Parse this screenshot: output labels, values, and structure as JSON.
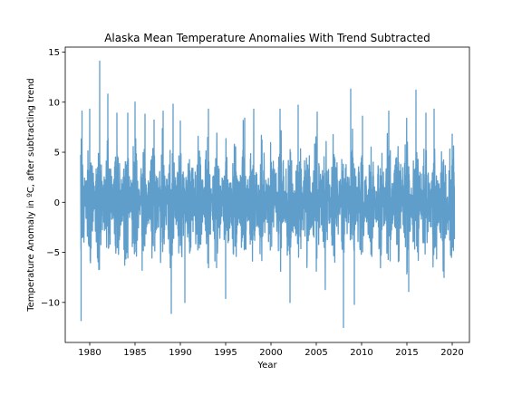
{
  "chart_data": {
    "type": "line",
    "title": "Alaska Mean Temperature Anomalies With Trend Subtracted",
    "xlabel": "Year",
    "ylabel": "Temperature Anomaly in ºC, after subtracting trend",
    "xlim": [
      1977.3,
      2021.9
    ],
    "ylim": [
      -14.0,
      15.5
    ],
    "xticks": [
      1980,
      1985,
      1990,
      1995,
      2000,
      2005,
      2010,
      2015,
      2020
    ],
    "yticks": [
      -10,
      -5,
      0,
      5,
      10,
      15
    ],
    "grid": false,
    "line_color": "#5f9ecb",
    "series": [
      {
        "sampling": "approximately daily, 1979-01-01 to 2020-03-31",
        "x_start": 1979.0,
        "x_end": 2020.25,
        "typical_range": [
          -6,
          6
        ],
        "extreme_points": [
          {
            "x": 1979.05,
            "y": -11.8
          },
          {
            "x": 1979.15,
            "y": 9.1
          },
          {
            "x": 1980.0,
            "y": 9.3
          },
          {
            "x": 1981.1,
            "y": 14.1
          },
          {
            "x": 1982.0,
            "y": 10.8
          },
          {
            "x": 1983.0,
            "y": 8.9
          },
          {
            "x": 1984.2,
            "y": 8.9
          },
          {
            "x": 1985.0,
            "y": 10.0
          },
          {
            "x": 1986.1,
            "y": 8.8
          },
          {
            "x": 1987.1,
            "y": 8.2
          },
          {
            "x": 1988.1,
            "y": 9.1
          },
          {
            "x": 1989.0,
            "y": -11.1
          },
          {
            "x": 1989.2,
            "y": 9.8
          },
          {
            "x": 1990.0,
            "y": 8.1
          },
          {
            "x": 1990.5,
            "y": -10.0
          },
          {
            "x": 1993.1,
            "y": 9.3
          },
          {
            "x": 1995.0,
            "y": -9.6
          },
          {
            "x": 1997.1,
            "y": 8.4
          },
          {
            "x": 1998.1,
            "y": 9.3
          },
          {
            "x": 2001.0,
            "y": 9.3
          },
          {
            "x": 2002.1,
            "y": -10.0
          },
          {
            "x": 2003.0,
            "y": 9.7
          },
          {
            "x": 2005.1,
            "y": 9.0
          },
          {
            "x": 2008.0,
            "y": -12.5
          },
          {
            "x": 2008.8,
            "y": 11.3
          },
          {
            "x": 2009.2,
            "y": -10.2
          },
          {
            "x": 2010.1,
            "y": 8.6
          },
          {
            "x": 2013.0,
            "y": 9.1
          },
          {
            "x": 2015.2,
            "y": -8.9
          },
          {
            "x": 2016.0,
            "y": 11.2
          },
          {
            "x": 2017.1,
            "y": 8.9
          },
          {
            "x": 2018.0,
            "y": 9.3
          },
          {
            "x": 2019.1,
            "y": -7.5
          },
          {
            "x": 2020.0,
            "y": 6.8
          }
        ]
      }
    ]
  }
}
